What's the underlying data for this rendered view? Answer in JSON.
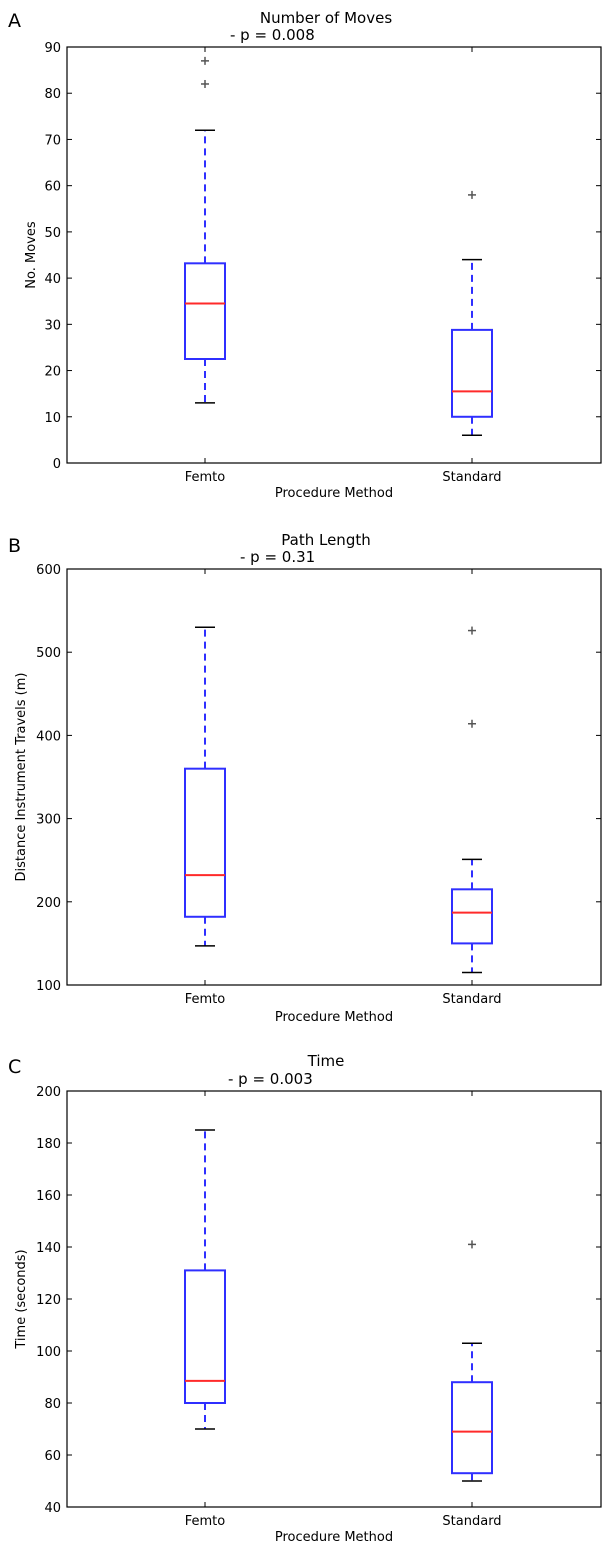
{
  "chart_data": [
    {
      "type": "box",
      "panel_label": "A",
      "title": "Number of Moves",
      "annotation": "- p = 0.008",
      "xlabel": "Procedure Method",
      "ylabel": "No. Moves",
      "ylim": [
        0,
        90
      ],
      "yticks": [
        0,
        10,
        20,
        30,
        40,
        50,
        60,
        70,
        80,
        90
      ],
      "categories": [
        "Femto",
        "Standard"
      ],
      "boxes": [
        {
          "category": "Femto",
          "whisker_low": 13,
          "q1": 22.5,
          "median": 34.5,
          "q3": 43.2,
          "whisker_high": 72,
          "outliers": [
            82,
            87
          ]
        },
        {
          "category": "Standard",
          "whisker_low": 6,
          "q1": 10,
          "median": 15.5,
          "q3": 28.8,
          "whisker_high": 44,
          "outliers": [
            58
          ]
        }
      ]
    },
    {
      "type": "box",
      "panel_label": "B",
      "title": "Path Length",
      "annotation": "- p = 0.31",
      "xlabel": "Procedure Method",
      "ylabel": "Distance Instrument Travels (m)",
      "ylim": [
        100,
        600
      ],
      "yticks": [
        100,
        200,
        300,
        400,
        500,
        600
      ],
      "categories": [
        "Femto",
        "Standard"
      ],
      "boxes": [
        {
          "category": "Femto",
          "whisker_low": 147,
          "q1": 182,
          "median": 232,
          "q3": 360,
          "whisker_high": 530,
          "outliers": []
        },
        {
          "category": "Standard",
          "whisker_low": 115,
          "q1": 150,
          "median": 187,
          "q3": 215,
          "whisker_high": 251,
          "outliers": [
            414,
            526
          ]
        }
      ]
    },
    {
      "type": "box",
      "panel_label": "C",
      "title": "Time",
      "annotation": "- p = 0.003",
      "xlabel": "Procedure Method",
      "ylabel": "Time (seconds)",
      "ylim": [
        40,
        200
      ],
      "yticks": [
        40,
        60,
        80,
        100,
        120,
        140,
        160,
        180,
        200
      ],
      "categories": [
        "Femto",
        "Standard"
      ],
      "boxes": [
        {
          "category": "Femto",
          "whisker_low": 70,
          "q1": 80,
          "median": 88.5,
          "q3": 131,
          "whisker_high": 185,
          "outliers": []
        },
        {
          "category": "Standard",
          "whisker_low": 50,
          "q1": 53,
          "median": 69,
          "q3": 88,
          "whisker_high": 103,
          "outliers": [
            141
          ]
        }
      ]
    }
  ],
  "colors": {
    "box": "#2f2fff",
    "median": "#ff2a2a",
    "cap": "#000000",
    "outlier": "#555555",
    "axis": "#000000"
  }
}
